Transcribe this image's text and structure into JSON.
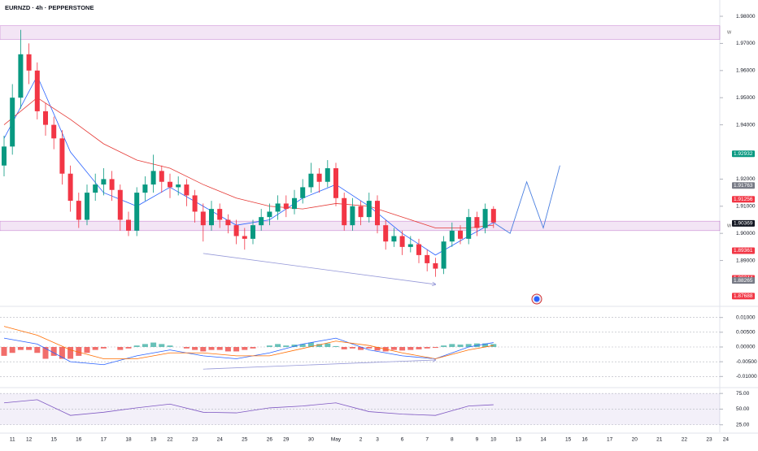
{
  "chart_data": [
    {
      "type": "candlestick",
      "title": "EURNZD · 4h · PEPPERSTONE",
      "categories": [
        null,
        "11",
        null,
        "12",
        null,
        null,
        "15",
        null,
        null,
        "16",
        null,
        null,
        "17",
        null,
        null,
        "18",
        null,
        null,
        "19",
        null,
        "22",
        null,
        null,
        "23",
        null,
        null,
        "24",
        null,
        null,
        "25",
        null,
        null,
        "26",
        null,
        "29",
        null,
        null,
        "30",
        null,
        null,
        "May",
        null,
        null,
        "2",
        null,
        "3",
        null,
        null,
        "6",
        null,
        null,
        "7",
        null,
        null,
        "8",
        null,
        null,
        "9",
        null,
        "10",
        null,
        null,
        "13",
        null,
        null,
        "14",
        null,
        null,
        "15",
        null,
        "16",
        null,
        null,
        "17",
        null,
        null,
        "20",
        null,
        null,
        "21",
        null,
        null,
        "22",
        null,
        null,
        "23",
        null,
        "24",
        null
      ],
      "ohlc": [
        [
          1.925,
          1.936,
          1.921,
          1.932
        ],
        [
          1.932,
          1.955,
          1.929,
          1.95
        ],
        [
          1.95,
          1.975,
          1.946,
          1.966
        ],
        [
          1.966,
          1.97,
          1.955,
          1.96
        ],
        [
          1.96,
          1.963,
          1.942,
          1.945
        ],
        [
          1.945,
          1.948,
          1.936,
          1.94
        ],
        [
          1.94,
          1.943,
          1.931,
          1.935
        ],
        [
          1.935,
          1.938,
          1.918,
          1.922
        ],
        [
          1.922,
          1.925,
          1.908,
          1.912
        ],
        [
          1.912,
          1.915,
          1.902,
          1.905
        ],
        [
          1.905,
          1.918,
          1.903,
          1.915
        ],
        [
          1.915,
          1.922,
          1.912,
          1.918
        ],
        [
          1.918,
          1.924,
          1.914,
          1.92
        ],
        [
          1.92,
          1.923,
          1.912,
          1.916
        ],
        [
          1.916,
          1.918,
          1.901,
          1.905
        ],
        [
          1.905,
          1.908,
          1.899,
          1.901
        ],
        [
          1.901,
          1.917,
          1.899,
          1.915
        ],
        [
          1.915,
          1.921,
          1.912,
          1.918
        ],
        [
          1.918,
          1.929,
          1.915,
          1.923
        ],
        [
          1.923,
          1.925,
          1.915,
          1.919
        ],
        [
          1.919,
          1.922,
          1.913,
          1.917
        ],
        [
          1.917,
          1.921,
          1.914,
          1.918
        ],
        [
          1.918,
          1.92,
          1.91,
          1.914
        ],
        [
          1.914,
          1.916,
          1.904,
          1.908
        ],
        [
          1.908,
          1.911,
          1.897,
          1.903
        ],
        [
          1.903,
          1.912,
          1.901,
          1.909
        ],
        [
          1.909,
          1.911,
          1.902,
          1.905
        ],
        [
          1.905,
          1.907,
          1.9,
          1.903
        ],
        [
          1.903,
          1.905,
          1.896,
          1.899
        ],
        [
          1.899,
          1.902,
          1.894,
          1.898
        ],
        [
          1.898,
          1.905,
          1.896,
          1.903
        ],
        [
          1.903,
          1.909,
          1.901,
          1.906
        ],
        [
          1.906,
          1.911,
          1.903,
          1.908
        ],
        [
          1.908,
          1.914,
          1.905,
          1.911
        ],
        [
          1.911,
          1.914,
          1.906,
          1.909
        ],
        [
          1.909,
          1.916,
          1.907,
          1.913
        ],
        [
          1.913,
          1.92,
          1.911,
          1.917
        ],
        [
          1.917,
          1.926,
          1.915,
          1.922
        ],
        [
          1.922,
          1.924,
          1.915,
          1.919
        ],
        [
          1.919,
          1.927,
          1.917,
          1.924
        ],
        [
          1.924,
          1.926,
          1.91,
          1.913
        ],
        [
          1.913,
          1.915,
          1.901,
          1.903
        ],
        [
          1.903,
          1.913,
          1.901,
          1.91
        ],
        [
          1.91,
          1.912,
          1.903,
          1.906
        ],
        [
          1.906,
          1.915,
          1.904,
          1.912
        ],
        [
          1.912,
          1.914,
          1.9,
          1.903
        ],
        [
          1.903,
          1.905,
          1.894,
          1.897
        ],
        [
          1.897,
          1.902,
          1.895,
          1.899
        ],
        [
          1.899,
          1.901,
          1.892,
          1.895
        ],
        [
          1.895,
          1.899,
          1.893,
          1.896
        ],
        [
          1.896,
          1.898,
          1.889,
          1.892
        ],
        [
          1.892,
          1.894,
          1.886,
          1.889
        ],
        [
          1.889,
          1.891,
          1.884,
          1.887
        ],
        [
          1.887,
          1.899,
          1.885,
          1.897
        ],
        [
          1.897,
          1.904,
          1.895,
          1.901
        ],
        [
          1.901,
          1.903,
          1.896,
          1.898
        ],
        [
          1.898,
          1.909,
          1.896,
          1.906
        ],
        [
          1.906,
          1.908,
          1.899,
          1.902
        ],
        [
          1.902,
          1.911,
          1.9,
          1.909
        ],
        [
          1.909,
          1.91,
          1.902,
          1.904
        ]
      ],
      "up_color": "#089981",
      "down_color": "#f23645",
      "lines": [
        {
          "color": "#2962ff",
          "x": [
            0,
            4,
            8,
            12,
            16,
            20,
            24,
            28,
            32,
            36,
            40,
            44,
            48,
            52,
            56,
            59
          ],
          "values": [
            1.935,
            1.958,
            1.93,
            1.915,
            1.91,
            1.917,
            1.91,
            1.903,
            1.905,
            1.913,
            1.918,
            1.91,
            1.9,
            1.892,
            1.899,
            1.904
          ]
        },
        {
          "color": "#e53935",
          "x": [
            0,
            4,
            8,
            12,
            16,
            20,
            24,
            28,
            32,
            36,
            40,
            44,
            48,
            52,
            56,
            59
          ],
          "values": [
            1.94,
            1.95,
            1.942,
            1.933,
            1.927,
            1.924,
            1.918,
            1.913,
            1.91,
            1.909,
            1.911,
            1.91,
            1.906,
            1.902,
            1.902,
            1.903
          ]
        }
      ],
      "projection": {
        "color": "#4a7fe0",
        "x": [
          59,
          61,
          63,
          65,
          67
        ],
        "values": [
          1.904,
          1.9,
          1.919,
          1.902,
          1.925
        ]
      },
      "annotations": [
        {
          "color": "#9598d8",
          "x": [
            24,
            52
          ],
          "values": [
            1.8926,
            1.8812
          ]
        }
      ],
      "zones": [
        {
          "from": 1.9715,
          "to": 1.9765,
          "label": "W"
        },
        {
          "from": 1.901,
          "to": 1.9045,
          "label": "W"
        }
      ],
      "price_labels": {
        "values": [
          1.92932,
          1.91763,
          1.91256,
          1.90369,
          1.89361,
          1.88344,
          1.88265,
          1.87688
        ],
        "colors": [
          "#089981",
          "#787b86",
          "#f23645",
          "#131722",
          "#f23645",
          "#f23645",
          "#787b86",
          "#f23645"
        ]
      },
      "ylim": [
        1.8734,
        1.986
      ],
      "yticks": [
        {
          "value": 1.98,
          "label": "1.98000"
        },
        {
          "value": 1.97,
          "label": "1.97000"
        },
        {
          "value": 1.96,
          "label": "1.96000"
        },
        {
          "value": 1.95,
          "label": "1.95000"
        },
        {
          "value": 1.94,
          "label": "1.94000"
        },
        {
          "value": 1.92,
          "label": "1.92000"
        },
        {
          "value": 1.91,
          "label": "1.91000"
        },
        {
          "value": 1.9,
          "label": "1.90000"
        },
        {
          "value": 1.89,
          "label": "1.89000"
        }
      ],
      "grid": false
    },
    {
      "type": "bar",
      "values": [
        -0.003,
        -0.002,
        -0.001,
        -0.001,
        -0.002,
        -0.004,
        -0.003,
        -0.004,
        -0.004,
        -0.003,
        -0.002,
        -0.001,
        -0.0005,
        0,
        -0.001,
        -0.0005,
        0.0005,
        0.001,
        0.0015,
        0.001,
        0.0005,
        0,
        -0.0005,
        -0.001,
        -0.0015,
        -0.001,
        -0.001,
        -0.0015,
        -0.0015,
        -0.001,
        -0.0005,
        0,
        0.0005,
        0.001,
        0.0005,
        0.0008,
        0.001,
        0.0015,
        0.001,
        0.0012,
        0.0003,
        -0.0008,
        -0.0005,
        -0.001,
        -0.0005,
        -0.0012,
        -0.0015,
        -0.001,
        -0.0012,
        -0.001,
        -0.0008,
        -0.0005,
        -0.0003,
        0.0005,
        0.001,
        0.0008,
        0.001,
        0.0012,
        0.0012,
        0.001
      ],
      "positive_color": "#4db6ac",
      "negative_color": "#ef5350",
      "lines": [
        {
          "color": "#2962ff",
          "x": [
            0,
            4,
            8,
            12,
            16,
            20,
            24,
            28,
            32,
            36,
            40,
            44,
            48,
            52,
            56,
            59
          ],
          "values": [
            0.003,
            0.001,
            -0.005,
            -0.006,
            -0.003,
            -0.001,
            -0.003,
            -0.004,
            -0.002,
            0.001,
            0.003,
            -0.001,
            -0.003,
            -0.004,
            0.0,
            0.0015
          ]
        },
        {
          "color": "#ff6d00",
          "x": [
            0,
            4,
            8,
            12,
            16,
            20,
            24,
            28,
            32,
            36,
            40,
            44,
            48,
            52,
            56,
            59
          ],
          "values": [
            0.007,
            0.004,
            -0.001,
            -0.004,
            -0.004,
            -0.002,
            -0.002,
            -0.003,
            -0.003,
            -0.0005,
            0.002,
            0.0005,
            -0.002,
            -0.004,
            -0.001,
            0.0005
          ]
        }
      ],
      "annotations": [
        {
          "color": "#9598d8",
          "x": [
            24,
            52
          ],
          "values": [
            -0.0075,
            -0.0044
          ]
        }
      ],
      "ylim": [
        -0.0135,
        0.0135
      ],
      "yticks": [
        {
          "value": 0.01,
          "label": "0.01000"
        },
        {
          "value": 0.005,
          "label": "0.00500"
        },
        {
          "value": 0,
          "label": "0.00000"
        },
        {
          "value": -0.005,
          "label": "-0.00500"
        },
        {
          "value": -0.01,
          "label": "-0.01000"
        }
      ]
    },
    {
      "type": "line",
      "lines": [
        {
          "color": "#7e57c2",
          "x": [
            0,
            4,
            8,
            12,
            16,
            20,
            24,
            28,
            32,
            36,
            40,
            44,
            48,
            52,
            56,
            59
          ],
          "values": [
            60,
            65,
            40,
            45,
            52,
            58,
            45,
            44,
            52,
            55,
            60,
            46,
            42,
            40,
            55,
            57
          ]
        }
      ],
      "band": [
        25,
        75
      ],
      "ylim": [
        13,
        83
      ],
      "yticks": [
        {
          "value": 75,
          "label": "75.00"
        },
        {
          "value": 50,
          "label": "50.00"
        },
        {
          "value": 25,
          "label": "25.00"
        }
      ]
    }
  ]
}
